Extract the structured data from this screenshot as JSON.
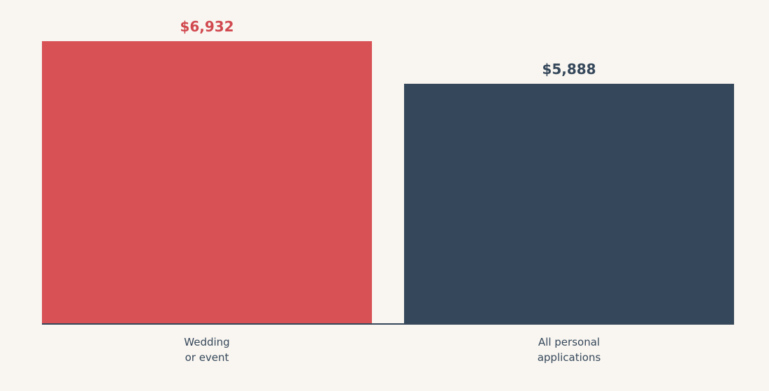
{
  "chart_data": {
    "type": "bar",
    "categories": [
      [
        "Wedding",
        "or event"
      ],
      [
        "All personal",
        "applications"
      ]
    ],
    "values": [
      6932,
      5888
    ],
    "value_labels": [
      "$6,932",
      "$5,888"
    ],
    "colors": [
      "#d75155",
      "#35475a"
    ],
    "label_colors": [
      "#d1494f",
      "#35475a"
    ],
    "axis_color": "#35475a",
    "background": "#f9f6f1",
    "ylim": [
      0,
      7000
    ],
    "grid": false,
    "legend": "none",
    "title": "",
    "xlabel": "",
    "ylabel": ""
  }
}
